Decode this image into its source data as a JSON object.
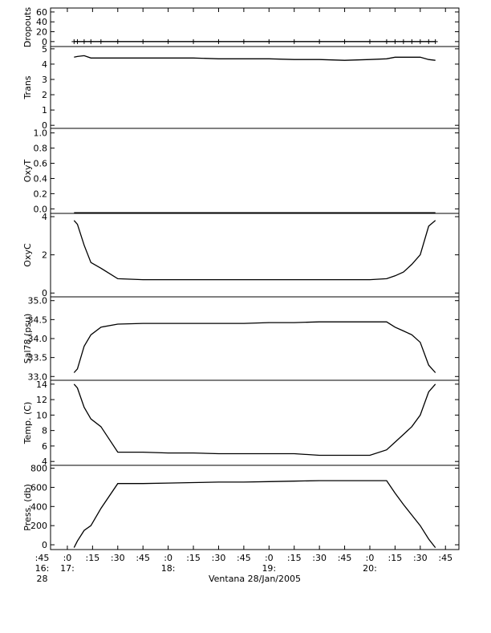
{
  "chart_data": [
    {
      "type": "line",
      "ylabel": "Dropouts",
      "color": "#000000",
      "markers": "+",
      "x": [
        "17:04",
        "17:06",
        "17:10",
        "17:14",
        "17:20",
        "17:30",
        "17:45",
        "18:00",
        "18:15",
        "18:30",
        "18:45",
        "19:00",
        "19:15",
        "19:30",
        "19:45",
        "20:00",
        "20:10",
        "20:15",
        "20:20",
        "20:25",
        "20:30",
        "20:35",
        "20:39"
      ],
      "values": [
        0,
        0,
        0,
        0,
        0,
        0,
        0,
        0,
        0,
        0,
        0,
        0,
        0,
        0,
        0,
        0,
        0,
        0,
        0,
        0,
        0,
        0,
        0
      ],
      "ylim": [
        -10,
        68
      ],
      "yticks": [
        0,
        20,
        40,
        60
      ]
    },
    {
      "type": "line",
      "ylabel": "Trans",
      "color": "#000000",
      "x": [
        "17:04",
        "17:06",
        "17:10",
        "17:14",
        "17:20",
        "17:30",
        "17:45",
        "18:00",
        "18:15",
        "18:30",
        "18:45",
        "19:00",
        "19:15",
        "19:30",
        "19:45",
        "20:00",
        "20:10",
        "20:15",
        "20:20",
        "20:25",
        "20:30",
        "20:35",
        "20:39"
      ],
      "values": [
        4.45,
        4.5,
        4.55,
        4.4,
        4.4,
        4.4,
        4.4,
        4.4,
        4.4,
        4.35,
        4.35,
        4.35,
        4.3,
        4.3,
        4.25,
        4.3,
        4.35,
        4.45,
        4.45,
        4.45,
        4.45,
        4.3,
        4.25
      ],
      "ylim": [
        -0.2,
        5.15
      ],
      "yticks": [
        0,
        1,
        2,
        3,
        4,
        5
      ]
    },
    {
      "type": "line",
      "ylabel": "OxyT",
      "color": "#000000",
      "x": [
        "17:04",
        "17:06",
        "17:10",
        "17:14",
        "17:20",
        "17:30",
        "17:45",
        "18:00",
        "18:15",
        "18:30",
        "18:45",
        "19:00",
        "19:15",
        "19:30",
        "19:45",
        "20:00",
        "20:10",
        "20:15",
        "20:20",
        "20:25",
        "20:30",
        "20:35",
        "20:39"
      ],
      "values": [
        -0.05,
        -0.05,
        -0.05,
        -0.05,
        -0.05,
        -0.05,
        -0.05,
        -0.05,
        -0.05,
        -0.05,
        -0.05,
        -0.05,
        -0.05,
        -0.05,
        -0.05,
        -0.05,
        -0.05,
        -0.05,
        -0.05,
        -0.05,
        -0.05,
        -0.05,
        -0.05
      ],
      "ylim": [
        -0.06,
        1.06
      ],
      "yticks": [
        {
          "value": 0,
          "label": "0.0"
        },
        0.2,
        0.4,
        0.6,
        0.8,
        {
          "value": 1,
          "label": "1.0"
        }
      ]
    },
    {
      "type": "line",
      "ylabel": "OxyC",
      "color": "#000000",
      "x": [
        "17:04",
        "17:06",
        "17:10",
        "17:14",
        "17:20",
        "17:30",
        "17:45",
        "18:00",
        "18:15",
        "18:30",
        "18:45",
        "19:00",
        "19:15",
        "19:30",
        "19:45",
        "20:00",
        "20:10",
        "20:15",
        "20:20",
        "20:25",
        "20:30",
        "20:35",
        "20:39"
      ],
      "values": [
        3.8,
        3.6,
        2.5,
        1.6,
        1.3,
        0.75,
        0.7,
        0.7,
        0.7,
        0.7,
        0.7,
        0.7,
        0.7,
        0.7,
        0.7,
        0.7,
        0.75,
        0.9,
        1.1,
        1.5,
        2.0,
        3.5,
        3.8
      ],
      "ylim": [
        -0.2,
        4.17
      ],
      "yticks": [
        0,
        2,
        4
      ]
    },
    {
      "type": "line",
      "ylabel": "Sal78 (psu)",
      "color": "#000000",
      "x": [
        "17:04",
        "17:06",
        "17:10",
        "17:14",
        "17:20",
        "17:30",
        "17:45",
        "18:00",
        "18:15",
        "18:30",
        "18:45",
        "19:00",
        "19:15",
        "19:30",
        "19:45",
        "20:00",
        "20:10",
        "20:15",
        "20:20",
        "20:25",
        "20:30",
        "20:35",
        "20:39"
      ],
      "values": [
        33.1,
        33.2,
        33.8,
        34.1,
        34.3,
        34.38,
        34.4,
        34.4,
        34.4,
        34.4,
        34.4,
        34.42,
        34.42,
        34.44,
        34.44,
        34.44,
        34.44,
        34.3,
        34.2,
        34.1,
        33.9,
        33.3,
        33.1
      ],
      "ylim": [
        32.9,
        35.1
      ],
      "yticks": [
        {
          "value": 33,
          "label": "33.0"
        },
        33.5,
        {
          "value": 34,
          "label": "34.0"
        },
        34.5,
        {
          "value": 35,
          "label": "35.0"
        }
      ]
    },
    {
      "type": "line",
      "ylabel": "Temp. (C)",
      "color": "#000000",
      "x": [
        "17:04",
        "17:06",
        "17:10",
        "17:14",
        "17:20",
        "17:30",
        "17:45",
        "18:00",
        "18:15",
        "18:30",
        "18:45",
        "19:00",
        "19:15",
        "19:30",
        "19:45",
        "20:00",
        "20:10",
        "20:15",
        "20:20",
        "20:25",
        "20:30",
        "20:35",
        "20:39"
      ],
      "values": [
        14,
        13.5,
        11,
        9.5,
        8.5,
        5.2,
        5.2,
        5.1,
        5.1,
        5.0,
        5.0,
        5.0,
        5.0,
        4.8,
        4.8,
        4.8,
        5.5,
        6.5,
        7.5,
        8.5,
        10,
        13,
        14
      ],
      "ylim": [
        3.5,
        14.5
      ],
      "yticks": [
        4,
        6,
        8,
        10,
        12,
        14
      ]
    },
    {
      "type": "line",
      "ylabel": "Press. (db)",
      "color": "#000000",
      "x": [
        "17:04",
        "17:06",
        "17:10",
        "17:14",
        "17:20",
        "17:30",
        "17:45",
        "18:00",
        "18:15",
        "18:30",
        "18:45",
        "19:00",
        "19:15",
        "19:30",
        "19:45",
        "20:00",
        "20:10",
        "20:15",
        "20:20",
        "20:25",
        "20:30",
        "20:35",
        "20:39"
      ],
      "values": [
        -30,
        40,
        150,
        200,
        380,
        640,
        640,
        645,
        650,
        655,
        655,
        660,
        665,
        670,
        670,
        670,
        670,
        540,
        420,
        310,
        200,
        60,
        -30
      ],
      "ylim": [
        -50,
        830
      ],
      "yticks": [
        0,
        200,
        400,
        600,
        800
      ],
      "xlim": [
        "16:50",
        "20:53"
      ],
      "xticks": [
        {
          "value": "16:45",
          "label": ":45"
        },
        {
          "value": "17:00",
          "label": ":0"
        },
        {
          "value": "17:15",
          "label": ":15"
        },
        {
          "value": "17:30",
          "label": ":30"
        },
        {
          "value": "17:45",
          "label": ":45"
        },
        {
          "value": "18:00",
          "label": ":0"
        },
        {
          "value": "18:15",
          "label": ":15"
        },
        {
          "value": "18:30",
          "label": ":30"
        },
        {
          "value": "18:45",
          "label": ":45"
        },
        {
          "value": "19:00",
          "label": ":0"
        },
        {
          "value": "19:15",
          "label": ":15"
        },
        {
          "value": "19:30",
          "label": ":30"
        },
        {
          "value": "19:45",
          "label": ":45"
        },
        {
          "value": "20:00",
          "label": ":0"
        },
        {
          "value": "20:15",
          "label": ":15"
        },
        {
          "value": "20:30",
          "label": ":30"
        },
        {
          "value": "20:45",
          "label": ":45"
        }
      ],
      "hour_labels": [
        {
          "value": "16:45",
          "label": "16:"
        },
        {
          "value": "17:00",
          "label": "17:"
        },
        {
          "value": "18:00",
          "label": "18:"
        },
        {
          "value": "19:00",
          "label": "19:"
        },
        {
          "value": "20:00",
          "label": "20:"
        }
      ],
      "date_labels": [
        {
          "value": "16:45",
          "label": "28"
        }
      ],
      "xlabel": "Ventana 28/Jan/2005"
    }
  ]
}
